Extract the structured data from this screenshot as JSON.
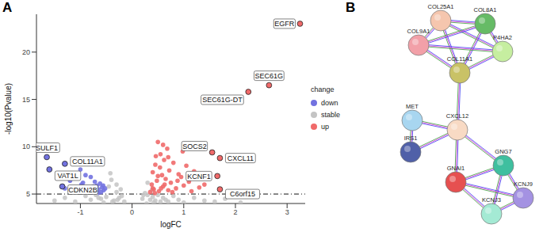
{
  "chart_data": [
    {
      "type": "scatter",
      "panel": "A",
      "x_label": "logFC",
      "y_label": "-log10(Pvalue)",
      "xlim": [
        -1.85,
        3.35
      ],
      "xticks": [
        -1,
        0,
        1,
        2,
        3
      ],
      "ylim": [
        4,
        24
      ],
      "yticks": [
        5,
        10,
        15,
        20
      ],
      "grid": false,
      "legend": "right",
      "legend_title": "change",
      "threshold": {
        "value": 5,
        "line_style": "dashdot"
      },
      "series": [
        {
          "name": "down",
          "color": "#7272e0",
          "x": [
            -1.05,
            -0.95,
            -0.9,
            -0.85,
            -0.8,
            -0.75,
            -0.72,
            -0.7,
            -0.68,
            -0.65,
            -0.62,
            -0.6,
            -0.58,
            -0.55,
            -0.52,
            -1.2,
            -1.1,
            -0.98,
            -0.88,
            -0.78,
            -0.66,
            -0.56,
            -1.3,
            -1.0,
            -0.92
          ],
          "y": [
            8.7,
            6.2,
            7.0,
            5.6,
            6.8,
            5.8,
            6.3,
            5.3,
            5.9,
            5.5,
            6.1,
            5.2,
            5.7,
            5.4,
            5.6,
            6.4,
            5.4,
            6.0,
            5.3,
            5.2,
            5.1,
            5.9,
            5.6,
            7.6,
            5.5
          ]
        },
        {
          "name": "stable",
          "color": "#c4c4c4",
          "x": [
            -1.5,
            -1.3,
            -1.1,
            -0.9,
            -0.8,
            -0.7,
            -0.6,
            -0.5,
            -0.45,
            -0.4,
            -0.35,
            -0.3,
            -0.25,
            -0.2,
            -0.15,
            0.2,
            0.25,
            0.3,
            0.35,
            0.4,
            0.45,
            0.5,
            0.6,
            0.7,
            0.8,
            0.9,
            1.0,
            1.2,
            1.4,
            1.6,
            1.8,
            2.1,
            -0.42,
            -0.3,
            -0.22,
            0.22,
            0.3,
            0.38,
            -0.55,
            0.55,
            -0.65,
            0.65,
            -0.38,
            0.42,
            -0.28,
            0.28
          ],
          "y": [
            4.3,
            4.6,
            4.2,
            4.8,
            4.4,
            4.9,
            4.5,
            4.7,
            5.8,
            6.5,
            4.3,
            5.2,
            4.6,
            4.8,
            4.2,
            4.5,
            5.1,
            4.9,
            4.4,
            4.7,
            4.3,
            4.9,
            4.6,
            4.2,
            4.8,
            4.4,
            4.1,
            4.6,
            4.3,
            4.2,
            4.5,
            4.1,
            7.2,
            6.0,
            5.5,
            4.9,
            6.2,
            5.4,
            4.1,
            4.2,
            4.6,
            4.4,
            4.2,
            4.1,
            4.4,
            4.0
          ]
        },
        {
          "name": "up",
          "color": "#f06a6a",
          "x": [
            0.35,
            0.38,
            0.4,
            0.42,
            0.45,
            0.48,
            0.5,
            0.52,
            0.55,
            0.58,
            0.6,
            0.62,
            0.65,
            0.68,
            0.7,
            0.72,
            0.75,
            0.8,
            0.85,
            0.9,
            0.95,
            1.0,
            1.05,
            1.1,
            1.2,
            1.3,
            0.44,
            0.5,
            0.56,
            0.63,
            0.7,
            0.78,
            0.88,
            0.98,
            1.15,
            1.4,
            0.4,
            0.6,
            0.46,
            0.54
          ],
          "y": [
            5.2,
            6.0,
            7.3,
            5.5,
            8.1,
            6.4,
            10.5,
            5.3,
            9.2,
            7.0,
            5.8,
            8.6,
            6.6,
            9.8,
            5.4,
            7.5,
            6.2,
            8.3,
            5.6,
            7.1,
            6.8,
            5.9,
            8.0,
            6.3,
            7.4,
            5.7,
            5.1,
            6.9,
            5.6,
            6.0,
            8.9,
            5.2,
            6.4,
            9.5,
            5.3,
            6.0,
            5.6,
            10.2,
            9.0,
            7.8
          ]
        }
      ],
      "labels": [
        {
          "text": "EGFR",
          "x": 3.25,
          "y": 23.0,
          "change": "up"
        },
        {
          "text": "SEC61G",
          "x": 2.65,
          "y": 16.5,
          "change": "up"
        },
        {
          "text": "SEC61G-DT",
          "x": 2.25,
          "y": 15.8,
          "change": "up"
        },
        {
          "text": "SOCS2",
          "x": 1.55,
          "y": 9.4,
          "change": "up"
        },
        {
          "text": "CXCL11",
          "x": 1.7,
          "y": 8.8,
          "change": "up"
        },
        {
          "text": "KCNF1",
          "x": 1.65,
          "y": 6.9,
          "change": "up"
        },
        {
          "text": "C6orf15",
          "x": 1.7,
          "y": 5.5,
          "change": "up"
        },
        {
          "text": "SULF1",
          "x": -1.65,
          "y": 8.9,
          "change": "down"
        },
        {
          "text": "COL11A1",
          "x": -1.3,
          "y": 8.2,
          "change": "down"
        },
        {
          "text": "VAT1L",
          "x": -1.6,
          "y": 7.6,
          "change": "down"
        },
        {
          "text": "CDKN2B",
          "x": -1.35,
          "y": 5.8,
          "change": "down"
        }
      ]
    },
    {
      "type": "network",
      "panel": "B",
      "nodes": [
        {
          "label": "COL25A1",
          "color": "#f5c6ae"
        },
        {
          "label": "COL8A1",
          "color": "#66bb66"
        },
        {
          "label": "COL9A1",
          "color": "#f2a0a8"
        },
        {
          "label": "P4HA2",
          "color": "#c6eea0"
        },
        {
          "label": "COL11A1",
          "color": "#c9c266"
        },
        {
          "label": "MET",
          "color": "#a8d6f0"
        },
        {
          "label": "CXCL12",
          "color": "#f8dac4"
        },
        {
          "label": "IRS1",
          "color": "#5060a8"
        },
        {
          "label": "GNG7",
          "color": "#3fbf9f"
        },
        {
          "label": "GNAI1",
          "color": "#e65050"
        },
        {
          "label": "KCNJ9",
          "color": "#a492e2"
        },
        {
          "label": "KCNJ3",
          "color": "#a4ead4"
        }
      ],
      "edges": [
        [
          "COL25A1",
          "COL8A1"
        ],
        [
          "COL25A1",
          "COL9A1"
        ],
        [
          "COL25A1",
          "P4HA2"
        ],
        [
          "COL25A1",
          "COL11A1"
        ],
        [
          "COL8A1",
          "COL9A1"
        ],
        [
          "COL8A1",
          "P4HA2"
        ],
        [
          "COL8A1",
          "COL11A1"
        ],
        [
          "COL9A1",
          "COL11A1"
        ],
        [
          "COL9A1",
          "P4HA2"
        ],
        [
          "P4HA2",
          "COL11A1"
        ],
        [
          "COL11A1",
          "CXCL12"
        ],
        [
          "CXCL12",
          "MET"
        ],
        [
          "MET",
          "IRS1"
        ],
        [
          "CXCL12",
          "IRS1"
        ],
        [
          "CXCL12",
          "GNG7"
        ],
        [
          "CXCL12",
          "GNAI1"
        ],
        [
          "GNG7",
          "GNAI1"
        ],
        [
          "GNG7",
          "KCNJ9"
        ],
        [
          "GNG7",
          "KCNJ3"
        ],
        [
          "GNAI1",
          "KCNJ3"
        ],
        [
          "GNAI1",
          "KCNJ9"
        ],
        [
          "KCNJ9",
          "KCNJ3"
        ]
      ]
    }
  ]
}
